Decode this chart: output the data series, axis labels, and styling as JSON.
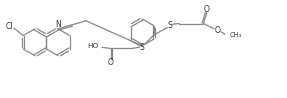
{
  "line_color": "#888888",
  "text_color": "#333333",
  "lw": 0.9,
  "figsize": [
    2.87,
    0.98
  ],
  "dpi": 100,
  "xlim": [
    0,
    10.2
  ],
  "ylim": [
    0,
    3.6
  ]
}
